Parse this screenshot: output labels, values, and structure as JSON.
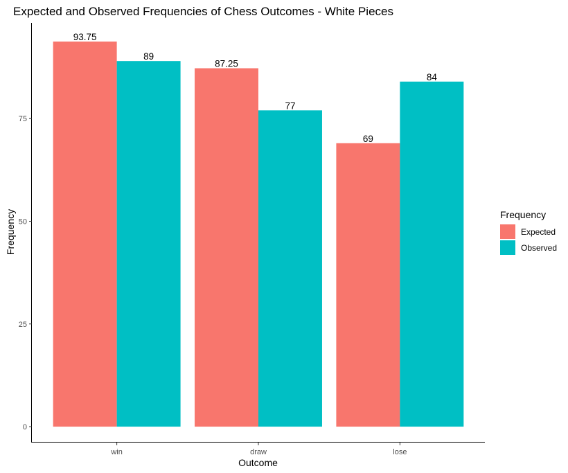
{
  "chart_data": {
    "type": "bar",
    "title": "Expected and Observed Frequencies of Chess Outcomes - White Pieces",
    "xlabel": "Outcome",
    "ylabel": "Frequency",
    "categories": [
      "win",
      "draw",
      "lose"
    ],
    "series": [
      {
        "name": "Expected",
        "color": "#F8766D",
        "values": [
          93.75,
          87.25,
          69
        ],
        "labels": [
          "93.75",
          "87.25",
          "69"
        ]
      },
      {
        "name": "Observed",
        "color": "#00BFC4",
        "values": [
          89,
          77,
          84
        ],
        "labels": [
          "89",
          "77",
          "84"
        ]
      }
    ],
    "yticks": [
      0,
      25,
      50,
      75
    ],
    "ytick_labels": [
      "0",
      "25",
      "50",
      "75"
    ],
    "ylim": [
      -3.7,
      98.3
    ],
    "grid": false,
    "legend": {
      "title": "Frequency",
      "placement": "right"
    }
  }
}
